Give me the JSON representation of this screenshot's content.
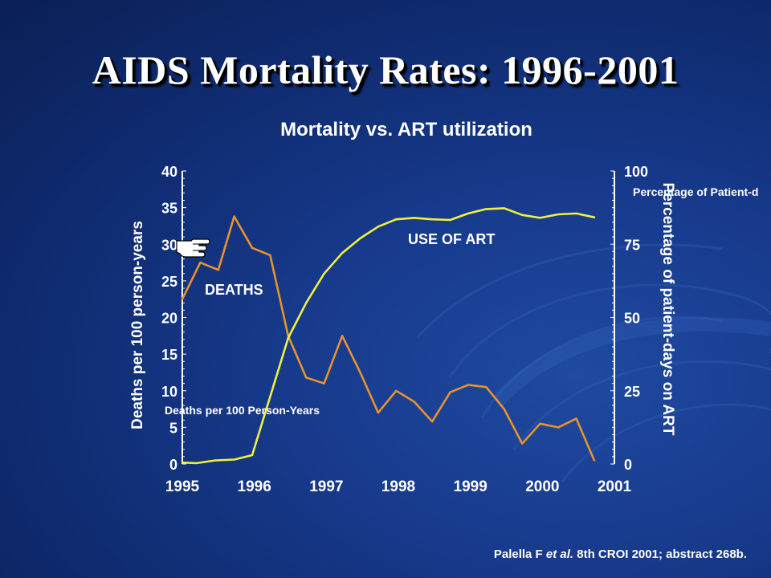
{
  "slide": {
    "title": "AIDS Mortality Rates: 1996-2001",
    "citation_author": "Palella F ",
    "citation_etal": "et al.",
    "citation_rest": " 8th CROI 2001; abstract 268b."
  },
  "chart_data": {
    "type": "line",
    "title": "Mortality vs. ART utilization",
    "ylabel_left": "Deaths per 100 person-years",
    "ylabel_right": "Percentage of patient-days on ART",
    "x_ticks": [
      "1995",
      "1996",
      "1997",
      "1998",
      "1999",
      "2000",
      "2001"
    ],
    "x_range": [
      1995,
      2001
    ],
    "ylim_left": [
      0,
      40
    ],
    "yticks_left": [
      0,
      5,
      10,
      15,
      20,
      25,
      30,
      35,
      40
    ],
    "ylim_right": [
      0,
      100
    ],
    "yticks_right": [
      0,
      25,
      50,
      75,
      100
    ],
    "legend_overlay_left": "Deaths per 100 Person-Years",
    "legend_overlay_right": "Percentage of Patient-d",
    "annotations": {
      "deaths": "DEATHS",
      "art": "USE OF ART"
    },
    "colors": {
      "deaths": "#e8922c",
      "art": "#f0f03c",
      "axis": "#ffffff"
    },
    "series": [
      {
        "key": "deaths",
        "axis": "left",
        "x": [
          1995.0,
          1995.25,
          1995.5,
          1995.72,
          1995.97,
          1996.22,
          1996.47,
          1996.72,
          1996.97,
          1997.22,
          1997.47,
          1997.72,
          1997.97,
          1998.22,
          1998.47,
          1998.72,
          1998.97,
          1999.22,
          1999.47,
          1999.72,
          1999.97,
          2000.22,
          2000.47,
          2000.72
        ],
        "y": [
          22.5,
          27.5,
          26.5,
          33.8,
          29.5,
          28.5,
          17.5,
          11.8,
          11.0,
          17.5,
          12.5,
          7.0,
          10.0,
          8.5,
          5.8,
          9.8,
          10.8,
          10.5,
          7.5,
          2.8,
          5.5,
          5.0,
          6.2,
          0.5
        ]
      },
      {
        "key": "art",
        "axis": "right",
        "x": [
          1995.0,
          1995.2,
          1995.45,
          1995.72,
          1995.97,
          1996.22,
          1996.47,
          1996.72,
          1996.97,
          1997.22,
          1997.47,
          1997.72,
          1997.97,
          1998.22,
          1998.47,
          1998.72,
          1998.97,
          1999.22,
          1999.47,
          1999.72,
          1999.97,
          2000.22,
          2000.47,
          2000.72
        ],
        "y": [
          0.5,
          0.3,
          1.2,
          1.5,
          3.0,
          23.0,
          43.0,
          55.0,
          65.0,
          72.0,
          77.0,
          81.0,
          83.5,
          84.0,
          83.5,
          83.3,
          85.5,
          87.0,
          87.3,
          85.0,
          84.0,
          85.2,
          85.5,
          84.2
        ]
      }
    ]
  }
}
